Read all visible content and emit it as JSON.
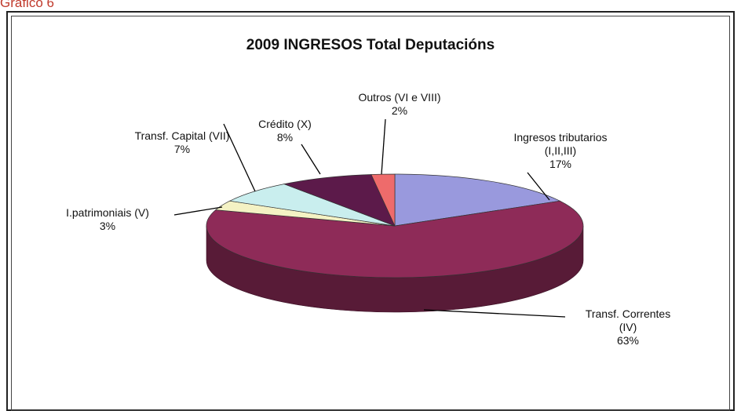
{
  "caption": "Gráfico 6",
  "chart_data": {
    "type": "pie",
    "title": "2009 INGRESOS Total Deputacións",
    "slices": [
      {
        "label": "Ingresos tributarios\n(I,II,III)",
        "value": 17,
        "pct_label": "17%",
        "color": "#9999dd"
      },
      {
        "label": "Transf. Correntes\n(IV)",
        "value": 63,
        "pct_label": "63%",
        "color": "#8e2b58"
      },
      {
        "label": "I.patrimoniais (V)",
        "value": 3,
        "pct_label": "3%",
        "color": "#f4f2c4"
      },
      {
        "label": "Transf. Capital (VII)",
        "value": 7,
        "pct_label": "7%",
        "color": "#c9eeee"
      },
      {
        "label": "Crédito (X)",
        "value": 8,
        "pct_label": "8%",
        "color": "#5c1a4a"
      },
      {
        "label": "Outros (VI e VIII)",
        "value": 2,
        "pct_label": "2%",
        "color": "#ee6b6b"
      }
    ]
  }
}
